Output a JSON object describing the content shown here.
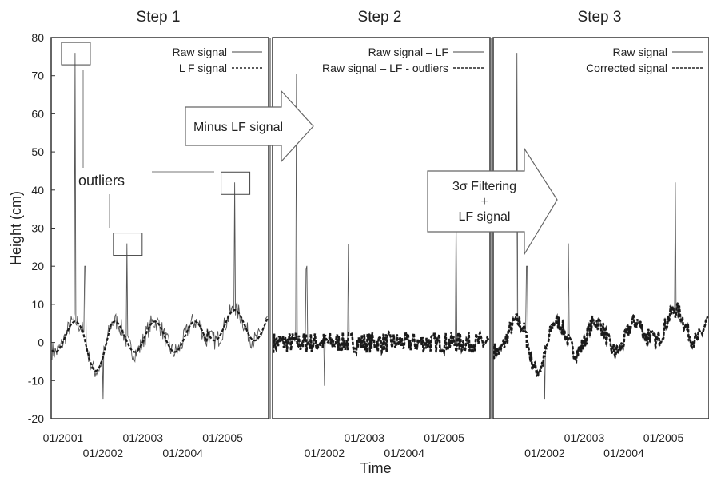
{
  "chart_data": {
    "type": "line",
    "xlabel": "Time",
    "ylabel": "Height (cm)",
    "ylim": [
      -20,
      80
    ],
    "yticks": [
      "-20",
      "-10",
      "0",
      "10",
      "20",
      "30",
      "40",
      "50",
      "60",
      "70",
      "80"
    ],
    "grid": false,
    "legend_position": "top-right",
    "panels": [
      {
        "title": "Step 1",
        "date_ticks": [
          {
            "label": "01/2001",
            "x": 2001.0,
            "row": 0
          },
          {
            "label": "01/2002",
            "x": 2002.0,
            "row": 1
          },
          {
            "label": "01/2003",
            "x": 2003.0,
            "row": 0
          },
          {
            "label": "01/2004",
            "x": 2004.0,
            "row": 1
          },
          {
            "label": "01/2005",
            "x": 2005.0,
            "row": 0
          }
        ],
        "series": [
          {
            "name": "Raw signal",
            "style": "thin"
          },
          {
            "name": "L F signal",
            "style": "dashed"
          }
        ]
      },
      {
        "title": "Step 2",
        "date_ticks": [
          {
            "label": "01/2002",
            "x": 2002.0,
            "row": 1
          },
          {
            "label": "01/2003",
            "x": 2003.0,
            "row": 0
          },
          {
            "label": "01/2004",
            "x": 2004.0,
            "row": 1
          },
          {
            "label": "01/2005",
            "x": 2005.0,
            "row": 0
          }
        ],
        "series": [
          {
            "name": "Raw signal – LF",
            "style": "thin"
          },
          {
            "name": "Raw signal – LF - outliers",
            "style": "dashed"
          }
        ]
      },
      {
        "title": "Step 3",
        "date_ticks": [
          {
            "label": "01/2002",
            "x": 2002.0,
            "row": 1
          },
          {
            "label": "01/2003",
            "x": 2003.0,
            "row": 0
          },
          {
            "label": "01/2004",
            "x": 2004.0,
            "row": 1
          },
          {
            "label": "01/2005",
            "x": 2005.0,
            "row": 0
          }
        ],
        "series": [
          {
            "name": "Raw signal",
            "style": "thin"
          },
          {
            "name": "Corrected signal",
            "style": "dashed"
          }
        ]
      }
    ],
    "annotations": {
      "outliers_label": "outliers",
      "arrow1_text": "Minus LF signal",
      "arrow2_lines": [
        "3σ Filtering",
        "+",
        "LF signal"
      ]
    },
    "outlier_points": [
      {
        "x": 2001.3,
        "y": 76
      },
      {
        "x": 2002.6,
        "y": 26
      },
      {
        "x": 2005.3,
        "y": 42
      }
    ],
    "spikes": [
      {
        "x": 2001.3,
        "y": 76
      },
      {
        "x": 2001.55,
        "y": 20
      },
      {
        "x": 2002.0,
        "y": -15
      },
      {
        "x": 2002.6,
        "y": 26
      },
      {
        "x": 2005.3,
        "y": 42
      }
    ]
  }
}
